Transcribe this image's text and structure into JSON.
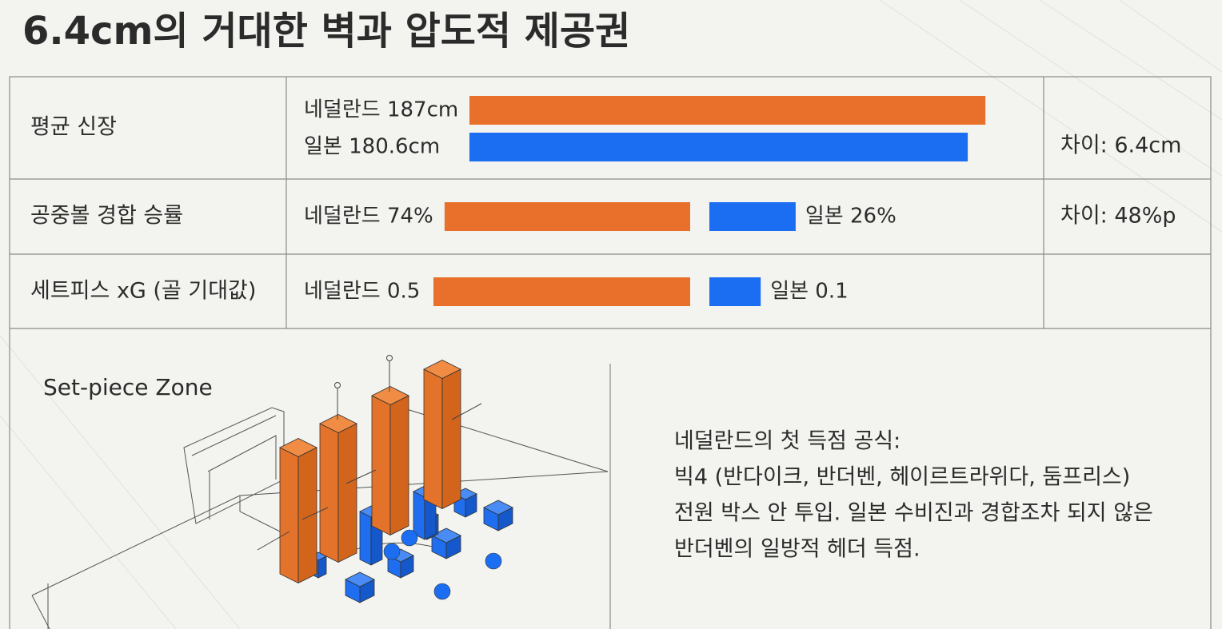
{
  "title": "6.4cm의 거대한 벽과 압도적 제공권",
  "table": {
    "rows": [
      {
        "label": "평균 신장",
        "items": [
          {
            "text": "네덜란드 187cm",
            "value": 187,
            "color": "#e8702a"
          },
          {
            "text": "일본 180.6cm",
            "value": 180.6,
            "color": "#1b6ef2"
          }
        ],
        "diff": "차이: 6.4cm"
      },
      {
        "label": "공중볼 경합 승률",
        "items": [
          {
            "text": "네덜란드 74%",
            "value": 74,
            "color": "#e8702a"
          },
          {
            "text": "일본 26%",
            "value": 26,
            "color": "#1b6ef2"
          }
        ],
        "diff": "차이: 48%p"
      },
      {
        "label": "세트피스 xG (골 기대값)",
        "items": [
          {
            "text": "네덜란드 0.5",
            "value": 0.5,
            "color": "#e8702a"
          },
          {
            "text": "일본 0.1",
            "value": 0.1,
            "color": "#1b6ef2"
          }
        ]
      }
    ]
  },
  "zone_label": "Set-piece Zone",
  "note": {
    "lines": [
      "네덜란드의 첫 득점 공식:",
      "빅4 (반다이크, 반더벤, 헤이르트라위다, 둠프리스)",
      "전원 박스 안 투입. 일본 수비진과 경합조차 되지 않은",
      "반더벤의 일방적 헤더 득점."
    ]
  }
}
